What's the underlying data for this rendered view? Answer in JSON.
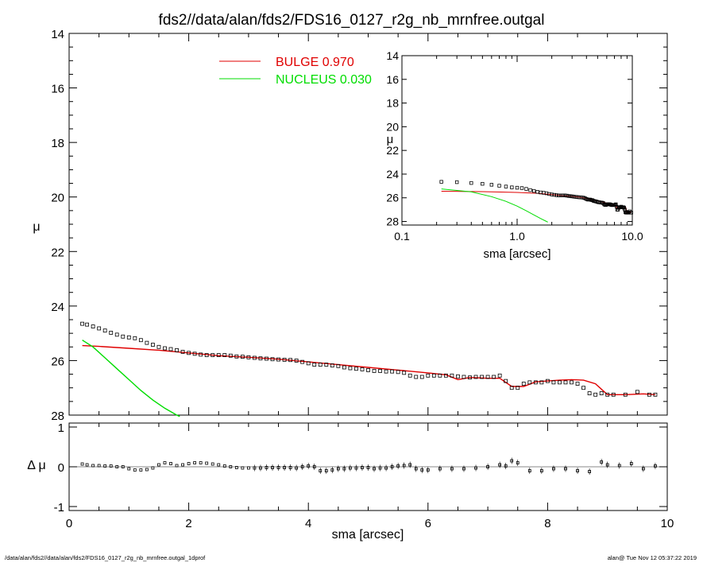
{
  "title": "fds2//data/alan/fds2/FDS16_0127_r2g_nb_mrnfree.outgal",
  "footer": {
    "left": "/data/alan/fds2//data/alan/fds2/FDS16_0127_r2g_nb_mrnfree.outgal_1dprof",
    "right": "alan@  Tue Nov 12 05:37:22 2019"
  },
  "colors": {
    "bulge": "#e00000",
    "nucleus": "#00dd00",
    "data": "#000000",
    "residual_line": "#888888"
  },
  "chart_data": [
    {
      "id": "main",
      "type": "scatter",
      "xlabel": "",
      "ylabel": "μ",
      "xlim": [
        0,
        10
      ],
      "ylim": [
        28,
        14
      ],
      "yticks": [
        14,
        16,
        18,
        20,
        22,
        24,
        26,
        28
      ],
      "xticks": [
        0,
        2,
        4,
        6,
        8,
        10
      ],
      "legend": [
        {
          "name": "BULGE",
          "value": "0.970",
          "color": "#e00000"
        },
        {
          "name": "NUCLEUS",
          "value": "0.030",
          "color": "#00dd00"
        }
      ],
      "legend_position": "top-center",
      "data_points": {
        "x": [
          0.22,
          0.3,
          0.4,
          0.5,
          0.6,
          0.7,
          0.8,
          0.9,
          1.0,
          1.1,
          1.2,
          1.3,
          1.4,
          1.5,
          1.6,
          1.7,
          1.8,
          1.9,
          2.0,
          2.1,
          2.2,
          2.3,
          2.4,
          2.5,
          2.6,
          2.7,
          2.8,
          2.9,
          3.0,
          3.1,
          3.2,
          3.3,
          3.4,
          3.5,
          3.6,
          3.7,
          3.8,
          3.9,
          4.0,
          4.1,
          4.2,
          4.3,
          4.4,
          4.5,
          4.6,
          4.7,
          4.8,
          4.9,
          5.0,
          5.1,
          5.2,
          5.3,
          5.4,
          5.5,
          5.6,
          5.7,
          5.8,
          5.9,
          6.0,
          6.1,
          6.2,
          6.3,
          6.4,
          6.5,
          6.6,
          6.7,
          6.8,
          6.9,
          7.0,
          7.1,
          7.2,
          7.3,
          7.4,
          7.5,
          7.6,
          7.7,
          7.8,
          7.9,
          8.0,
          8.1,
          8.2,
          8.3,
          8.4,
          8.5,
          8.6,
          8.7,
          8.8,
          8.9,
          9.0,
          9.1,
          9.3,
          9.5,
          9.7,
          9.8
        ],
        "y": [
          24.65,
          24.68,
          24.75,
          24.82,
          24.9,
          24.98,
          25.05,
          25.12,
          25.15,
          25.18,
          25.25,
          25.35,
          25.42,
          25.5,
          25.55,
          25.58,
          25.62,
          25.68,
          25.72,
          25.75,
          25.78,
          25.8,
          25.8,
          25.8,
          25.8,
          25.82,
          25.85,
          25.86,
          25.88,
          25.9,
          25.92,
          25.93,
          25.95,
          25.96,
          25.97,
          25.98,
          26.0,
          26.05,
          26.1,
          26.15,
          26.15,
          26.15,
          26.18,
          26.2,
          26.25,
          26.28,
          26.3,
          26.32,
          26.35,
          26.38,
          26.38,
          26.4,
          26.4,
          26.42,
          26.45,
          26.55,
          26.6,
          26.6,
          26.55,
          26.55,
          26.55,
          26.55,
          26.55,
          26.58,
          26.6,
          26.62,
          26.6,
          26.6,
          26.6,
          26.6,
          26.55,
          26.75,
          27.0,
          27.0,
          26.85,
          26.8,
          26.8,
          26.8,
          26.75,
          26.8,
          26.8,
          26.8,
          26.8,
          26.85,
          27.0,
          27.2,
          27.25,
          27.2,
          27.25,
          27.25,
          27.25,
          27.15,
          27.25,
          27.25
        ]
      },
      "bulge_curve": {
        "x": [
          0.22,
          0.5,
          1.0,
          1.5,
          2.0,
          2.5,
          3.0,
          3.5,
          4.0,
          4.5,
          5.0,
          5.5,
          6.0,
          6.3,
          6.5,
          6.7,
          7.0,
          7.2,
          7.4,
          7.6,
          7.8,
          8.0,
          8.2,
          8.4,
          8.6,
          8.8,
          9.0,
          9.3,
          9.6,
          9.8
        ],
        "y": [
          25.45,
          25.48,
          25.55,
          25.62,
          25.72,
          25.82,
          25.88,
          25.95,
          26.05,
          26.15,
          26.25,
          26.35,
          26.45,
          26.52,
          26.7,
          26.62,
          26.65,
          26.65,
          26.95,
          26.95,
          26.78,
          26.75,
          26.72,
          26.7,
          26.72,
          26.85,
          27.25,
          27.25,
          27.22,
          27.25
        ]
      },
      "nucleus_curve": {
        "x": [
          0.22,
          0.4,
          0.6,
          0.8,
          1.0,
          1.2,
          1.4,
          1.6,
          1.8,
          1.85
        ],
        "y": [
          25.25,
          25.5,
          25.9,
          26.3,
          26.7,
          27.1,
          27.45,
          27.75,
          28.0,
          28.05
        ]
      }
    },
    {
      "id": "residual",
      "type": "scatter",
      "xlabel": "sma [arcsec]",
      "ylabel": "Δ μ",
      "xlim": [
        0,
        10
      ],
      "ylim": [
        -1.1,
        1.1
      ],
      "yticks": [
        -1,
        0,
        1
      ],
      "xticks": [
        0,
        2,
        4,
        6,
        8,
        10
      ],
      "x": [
        0.22,
        0.3,
        0.4,
        0.5,
        0.6,
        0.7,
        0.8,
        0.9,
        1.0,
        1.1,
        1.2,
        1.3,
        1.4,
        1.5,
        1.6,
        1.7,
        1.8,
        1.9,
        2.0,
        2.1,
        2.2,
        2.3,
        2.4,
        2.5,
        2.6,
        2.7,
        2.8,
        2.9,
        3.0,
        3.1,
        3.2,
        3.3,
        3.4,
        3.5,
        3.6,
        3.7,
        3.8,
        3.9,
        4.0,
        4.1,
        4.2,
        4.3,
        4.4,
        4.5,
        4.6,
        4.7,
        4.8,
        4.9,
        5.0,
        5.1,
        5.2,
        5.3,
        5.4,
        5.5,
        5.6,
        5.7,
        5.8,
        5.9,
        6.0,
        6.2,
        6.4,
        6.6,
        6.8,
        7.0,
        7.2,
        7.3,
        7.4,
        7.5,
        7.7,
        7.9,
        8.1,
        8.3,
        8.5,
        8.7,
        8.9,
        9.0,
        9.2,
        9.4,
        9.6,
        9.8
      ],
      "y": [
        0.07,
        0.05,
        0.03,
        0.03,
        0.02,
        0.02,
        0.0,
        0.0,
        -0.05,
        -0.08,
        -0.08,
        -0.07,
        -0.03,
        0.05,
        0.1,
        0.08,
        0.03,
        0.05,
        0.08,
        0.1,
        0.1,
        0.09,
        0.07,
        0.05,
        0.02,
        0.0,
        -0.02,
        -0.03,
        -0.03,
        -0.03,
        -0.03,
        -0.02,
        -0.02,
        -0.02,
        -0.02,
        -0.02,
        -0.03,
        0.0,
        0.02,
        0.0,
        -0.1,
        -0.1,
        -0.08,
        -0.05,
        -0.05,
        -0.03,
        -0.03,
        -0.02,
        -0.02,
        -0.05,
        -0.03,
        -0.03,
        0.0,
        0.02,
        0.03,
        0.05,
        -0.05,
        -0.08,
        -0.08,
        -0.05,
        -0.05,
        -0.05,
        -0.03,
        0.0,
        0.05,
        0.02,
        0.15,
        0.1,
        -0.1,
        -0.1,
        -0.05,
        -0.05,
        -0.1,
        -0.12,
        0.12,
        0.05,
        0.03,
        0.08,
        -0.05,
        0.02
      ]
    },
    {
      "id": "inset",
      "type": "scatter",
      "xscale": "log",
      "xlabel": "sma [arcsec]",
      "ylabel": "μ",
      "xlim": [
        0.1,
        10.0
      ],
      "ylim": [
        28.3,
        14
      ],
      "yticks": [
        14,
        16,
        18,
        20,
        22,
        24,
        26,
        28
      ],
      "xticks": [
        0.1,
        1.0,
        10.0
      ],
      "xtick_labels": [
        "0.1",
        "1.0",
        "10.0"
      ]
    }
  ]
}
